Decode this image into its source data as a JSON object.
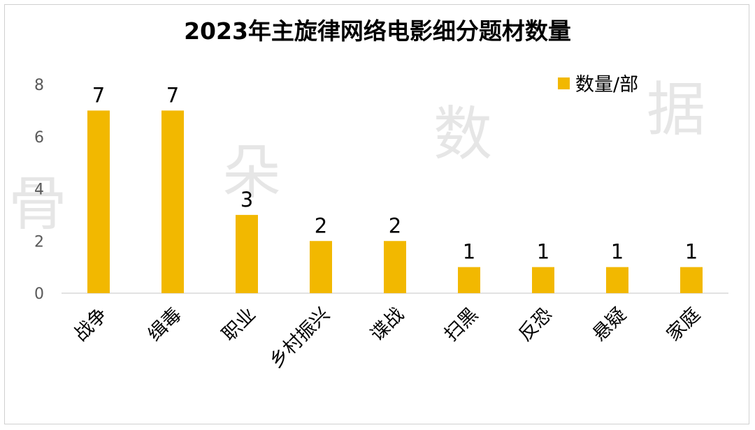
{
  "chart_data": {
    "type": "bar",
    "title": "2023年主旋律网络电影细分题材数量",
    "xlabel": "",
    "ylabel": "",
    "ylim": [
      0,
      8
    ],
    "yticks": [
      "0",
      "2",
      "4",
      "6",
      "8"
    ],
    "categories": [
      "战争",
      "缉毒",
      "职业",
      "乡村振兴",
      "谍战",
      "扫黑",
      "反恐",
      "悬疑",
      "家庭"
    ],
    "series": [
      {
        "name": "数量/部",
        "values": [
          7,
          7,
          3,
          2,
          2,
          1,
          1,
          1,
          1
        ]
      }
    ],
    "legend_position": "top-right",
    "grid": false,
    "colors": {
      "bar": "#F2B800",
      "axis": "#d9d9d9",
      "text": "#000000",
      "tick": "#595959"
    }
  },
  "watermark": [
    "骨",
    "朵",
    "数",
    "据"
  ]
}
